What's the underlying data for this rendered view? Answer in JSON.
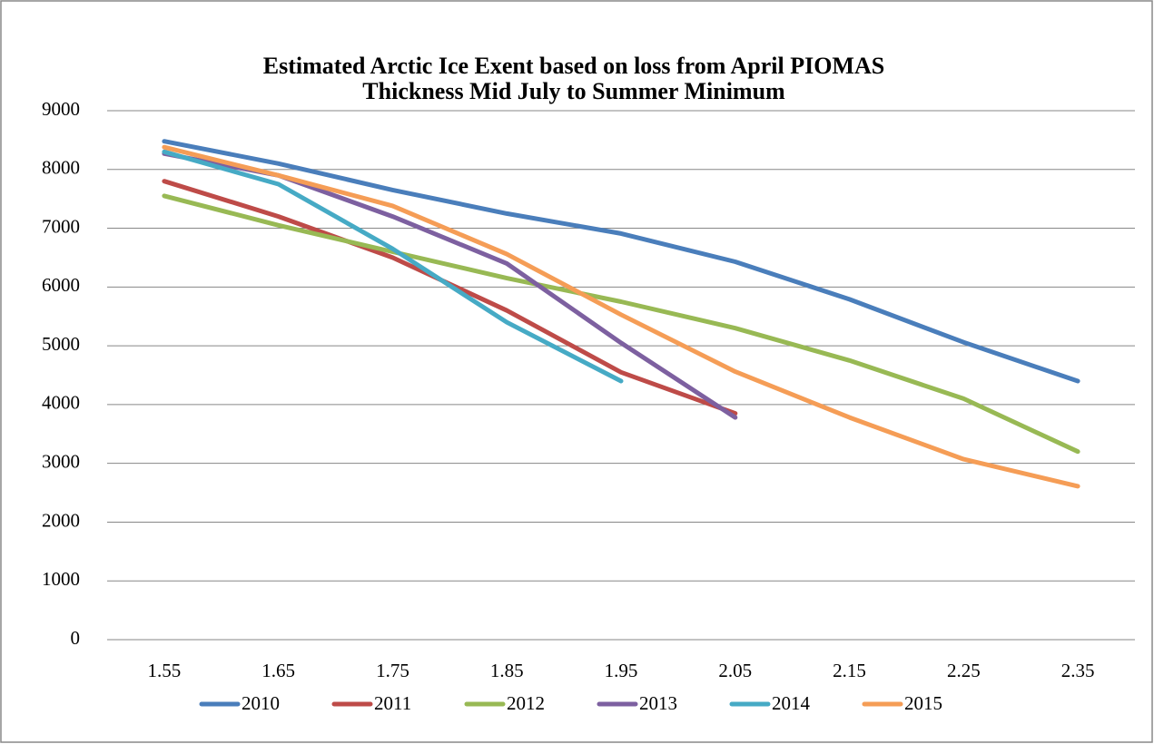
{
  "chart_data": {
    "type": "line",
    "title": [
      "Estimated Arctic Ice Exent based on loss from April PIOMAS",
      "Thickness Mid July to Summer Minimum"
    ],
    "categories": [
      "1.55",
      "1.65",
      "1.75",
      "1.85",
      "1.95",
      "2.05",
      "2.15",
      "2.25",
      "2.35"
    ],
    "series": [
      {
        "name": "2010",
        "color": "#4a7ebb",
        "values": [
          8480,
          8100,
          7650,
          7250,
          6910,
          6430,
          5790,
          5060,
          4400
        ]
      },
      {
        "name": "2011",
        "color": "#be4b48",
        "values": [
          7800,
          7200,
          6500,
          5600,
          4550,
          3850,
          null,
          null,
          null
        ]
      },
      {
        "name": "2012",
        "color": "#98b954",
        "values": [
          7550,
          7050,
          6600,
          6150,
          5750,
          5300,
          4750,
          4100,
          3200
        ]
      },
      {
        "name": "2013",
        "color": "#7d60a0",
        "values": [
          8270,
          7900,
          7200,
          6400,
          5050,
          3780,
          null,
          null,
          null
        ]
      },
      {
        "name": "2014",
        "color": "#46aac5",
        "values": [
          8300,
          7750,
          6650,
          5400,
          4400,
          null,
          null,
          null,
          null
        ]
      },
      {
        "name": "2015",
        "color": "#f59d56",
        "values": [
          8380,
          7900,
          7380,
          6560,
          5530,
          4560,
          3780,
          3070,
          2610
        ]
      }
    ],
    "ylim": [
      0,
      9000
    ],
    "yticks": [
      0,
      1000,
      2000,
      3000,
      4000,
      5000,
      6000,
      7000,
      8000,
      9000
    ],
    "grid": true,
    "legend": "bottom"
  }
}
